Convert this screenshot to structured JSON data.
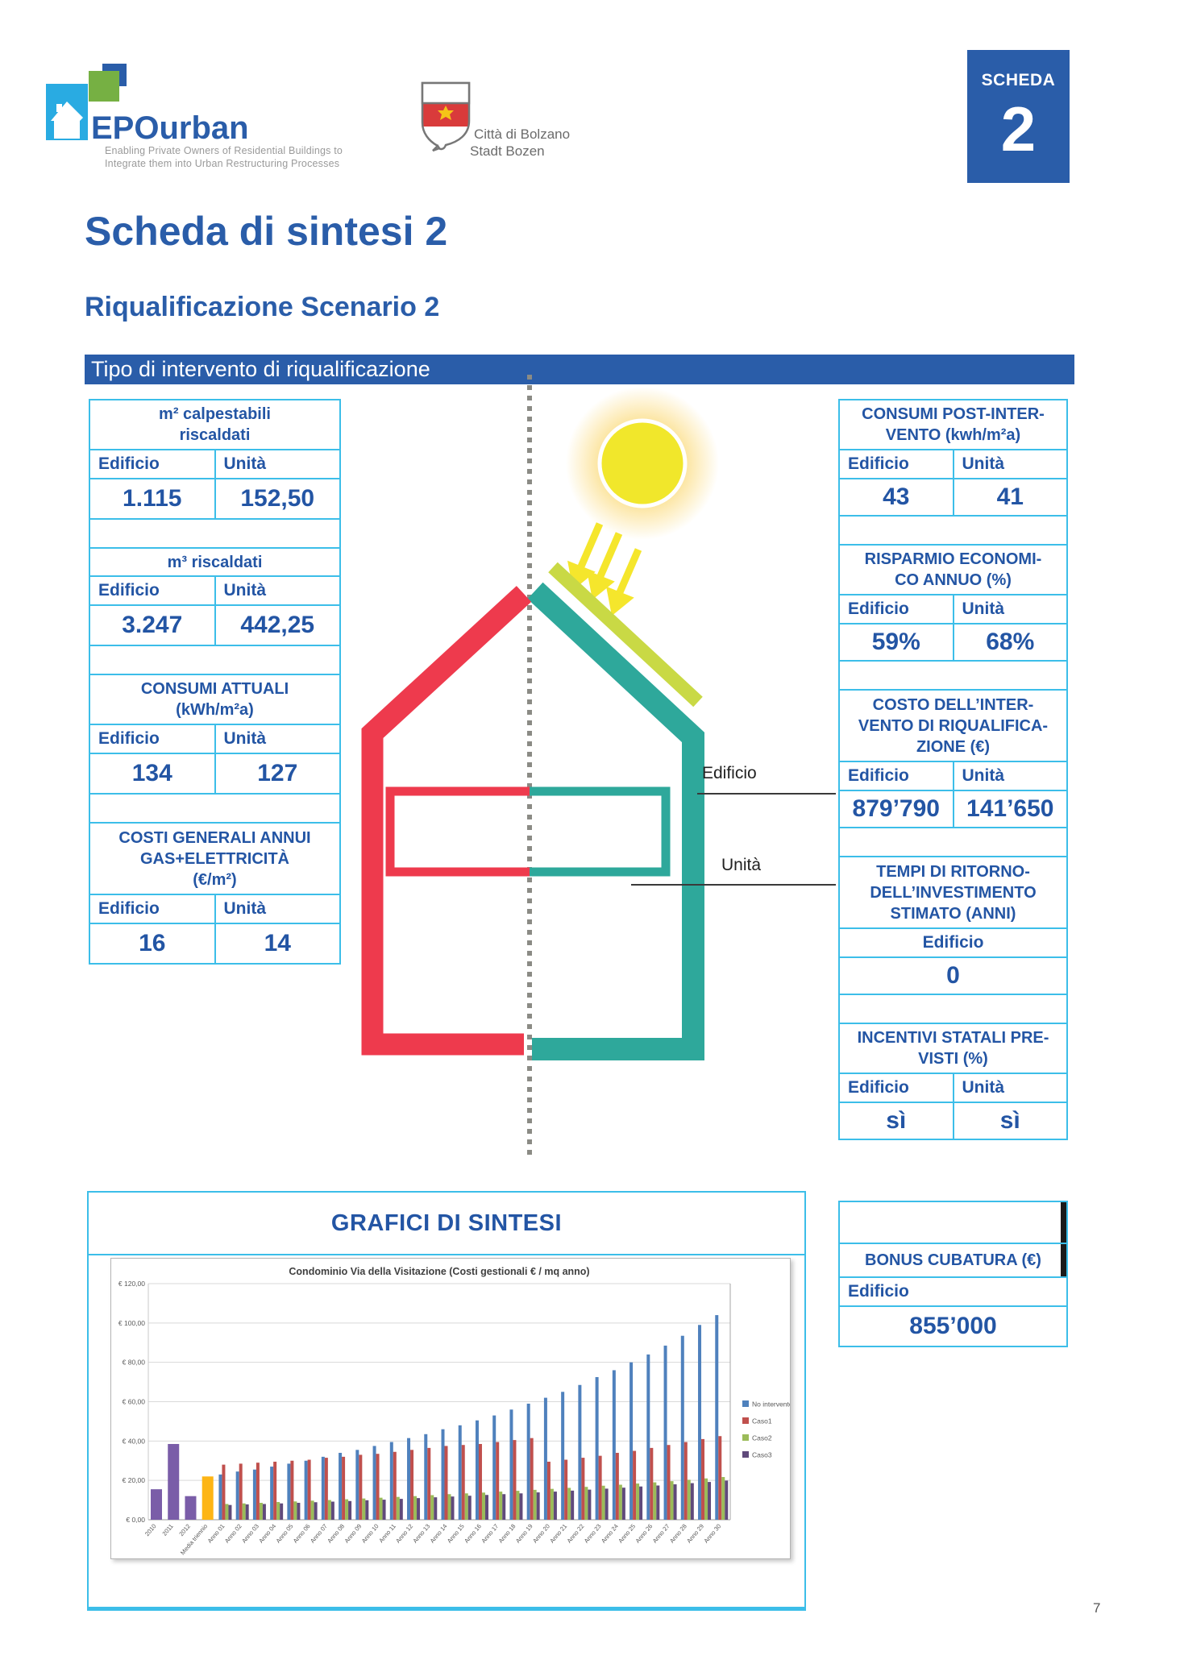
{
  "page": {
    "number": "7"
  },
  "header": {
    "epourban": {
      "name": "EPOurban",
      "tagline1": "Enabling Private Owners of Residential Buildings to",
      "tagline2": "Integrate them into Urban Restructuring Processes"
    },
    "bolzano": {
      "line1": "Città di Bolzano",
      "line2": "Stadt Bozen"
    },
    "badge": {
      "label": "SCHEDA",
      "number": "2"
    }
  },
  "title": "Scheda di sintesi 2",
  "subtitle": "Riqualificazione Scenario 2",
  "section_bar": "Tipo di intervento di riqualificazione",
  "colors": {
    "blue_dark": "#2A5DA9",
    "blue_text": "#2355A4",
    "cyan_border": "#3CBEE9",
    "house_red": "#EE3A4D",
    "house_teal": "#2EA89B",
    "panel_lime": "#C9D945",
    "sun_yellow": "#F1E72B"
  },
  "left_tables": [
    {
      "title": [
        "m² calpestabili",
        "riscaldati"
      ],
      "headers": [
        "Edificio",
        "Unità"
      ],
      "values": [
        "1.115",
        "152,50"
      ],
      "spacer": true
    },
    {
      "title": [
        "m³ riscaldati"
      ],
      "headers": [
        "Edificio",
        "Unità"
      ],
      "values": [
        "3.247",
        "442,25"
      ],
      "spacer": true
    },
    {
      "title": [
        "CONSUMI ATTUALI",
        "(kWh/m²a)"
      ],
      "headers": [
        "Edificio",
        "Unità"
      ],
      "values": [
        "134",
        "127"
      ],
      "spacer": true
    },
    {
      "title": [
        "COSTI GENERALI ANNUI",
        "GAS+ELETTRICITÀ",
        "(€/m²)"
      ],
      "headers": [
        "Edificio",
        "Unità"
      ],
      "values": [
        "16",
        "14"
      ],
      "spacer": false
    }
  ],
  "right_tables": [
    {
      "title": [
        "CONSUMI POST-INTER-",
        "VENTO (kwh/m²a)"
      ],
      "headers": [
        "Edificio",
        "Unità"
      ],
      "values": [
        "43",
        "41"
      ],
      "spacer": true
    },
    {
      "title": [
        "RISPARMIO ECONOMI-",
        "CO ANNUO (%)"
      ],
      "headers": [
        "Edificio",
        "Unità"
      ],
      "values": [
        "59%",
        "68%"
      ],
      "spacer": true
    },
    {
      "title": [
        "COSTO DELL’INTER-",
        "VENTO DI RIQUALIFICA-",
        "ZIONE (€)"
      ],
      "headers": [
        "Edificio",
        "Unità"
      ],
      "values": [
        "879’790",
        "141’650"
      ],
      "spacer": true
    },
    {
      "title": [
        "TEMPI DI RITORNO-",
        "DELL’INVESTIMENTO",
        "STIMATO (ANNI)"
      ],
      "headers": [
        "Edificio"
      ],
      "headers_center": true,
      "values": [
        "0"
      ],
      "spacer": true
    },
    {
      "title": [
        "INCENTIVI STATALI PRE-",
        "VISTI  (%)"
      ],
      "headers": [
        "Edificio",
        "Unità"
      ],
      "values": [
        "sì",
        "sì"
      ],
      "spacer": false
    }
  ],
  "bonus_table": {
    "title": "BONUS CUBATURA (€)",
    "header": "Edificio",
    "value": "855’000"
  },
  "house_labels": {
    "edificio": "Edificio",
    "unita": "Unità"
  },
  "grafici": {
    "title": "GRAFICI DI SINTESI"
  },
  "chart_data": {
    "type": "bar",
    "title": "Condominio Via della Visitazione (Costi gestionali € / mq anno)",
    "ylabel": "€ / mq anno",
    "ylim": [
      0,
      120
    ],
    "ytick_step": 20,
    "ytick_labels": [
      "€ 0,00",
      "€ 20,00",
      "€ 40,00",
      "€ 60,00",
      "€ 80,00",
      "€ 100,00",
      "€ 120,00"
    ],
    "grid": true,
    "legend_position": "right",
    "categories": [
      "2010",
      "2011",
      "2012",
      "Media triennio",
      "Anno 01",
      "Anno 02",
      "Anno 03",
      "Anno 04",
      "Anno 05",
      "Anno 06",
      "Anno 07",
      "Anno 08",
      "Anno 09",
      "Anno 10",
      "Anno 11",
      "Anno 12",
      "Anno 13",
      "Anno 14",
      "Anno 15",
      "Anno 16",
      "Anno 17",
      "Anno 18",
      "Anno 19",
      "Anno 20",
      "Anno 21",
      "Anno 22",
      "Anno 23",
      "Anno 24",
      "Anno 25",
      "Anno 26",
      "Anno 27",
      "Anno 28",
      "Anno 29",
      "Anno 30"
    ],
    "single_bars": [
      {
        "category": "2010",
        "value": 15.5,
        "color": "#7A5DA8"
      },
      {
        "category": "2011",
        "value": 38.5,
        "color": "#7A5DA8"
      },
      {
        "category": "2012",
        "value": 12,
        "color": "#7A5DA8"
      },
      {
        "category": "Media triennio",
        "value": 22,
        "color": "#FDB515"
      }
    ],
    "series_start_index": 4,
    "series": [
      {
        "name": "No intervento",
        "color": "#4F81BD",
        "values": [
          23,
          24.5,
          25.5,
          27,
          28.5,
          30,
          32,
          34,
          35.5,
          37.5,
          39.5,
          41.5,
          43.5,
          46,
          48,
          50.5,
          53,
          56,
          59,
          62,
          65,
          68.5,
          72.5,
          76,
          80,
          84,
          88.5,
          93.5,
          99,
          104
        ]
      },
      {
        "name": "Caso1",
        "color": "#C0504D",
        "values": [
          28,
          28.5,
          29,
          29.5,
          30,
          30.5,
          31.5,
          32,
          33,
          33.5,
          34.5,
          35.5,
          36.5,
          37.5,
          38,
          38.5,
          39.5,
          40.5,
          41.5,
          29.5,
          30.5,
          31.5,
          32.5,
          34,
          35,
          36.5,
          38,
          39.5,
          41,
          42.5
        ]
      },
      {
        "name": "Caso2",
        "color": "#9BBB59",
        "values": [
          8,
          8.3,
          8.6,
          9,
          9.3,
          9.7,
          10,
          10.4,
          10.8,
          11.2,
          11.6,
          12,
          12.5,
          13,
          13.4,
          13.8,
          14.3,
          14.7,
          15.2,
          15.7,
          16.2,
          16.7,
          17.3,
          17.8,
          18.4,
          19,
          19.6,
          20.3,
          21,
          21.7
        ]
      },
      {
        "name": "Caso3",
        "color": "#604A7B",
        "values": [
          7.5,
          7.8,
          8,
          8.3,
          8.6,
          8.9,
          9.2,
          9.5,
          9.9,
          10.2,
          10.6,
          11,
          11.4,
          11.8,
          12.2,
          12.6,
          13,
          13.4,
          13.9,
          14.3,
          14.8,
          15.3,
          15.8,
          16.3,
          16.9,
          17.4,
          18,
          18.6,
          19.2,
          19.9
        ]
      }
    ]
  }
}
